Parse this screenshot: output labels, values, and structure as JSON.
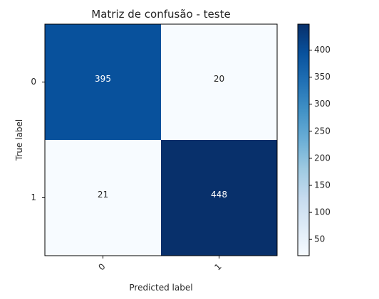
{
  "chart_data": {
    "type": "heatmap",
    "title": "Matriz de confusão - teste",
    "xlabel": "Predicted label",
    "ylabel": "True label",
    "x_categories": [
      "0",
      "1"
    ],
    "y_categories": [
      "0",
      "1"
    ],
    "values": [
      [
        395,
        20
      ],
      [
        21,
        448
      ]
    ],
    "colormap": "Blues",
    "color_min": 20,
    "color_max": 448,
    "colormap_stops": [
      "#f7fbff",
      "#deebf7",
      "#c6dbef",
      "#9ecae1",
      "#6baed6",
      "#4292c6",
      "#2171b5",
      "#08519c",
      "#08306b"
    ],
    "colorbar_ticks": [
      50,
      100,
      150,
      200,
      250,
      300,
      350,
      400
    ],
    "grid": false,
    "legend": "colorbar-right"
  }
}
